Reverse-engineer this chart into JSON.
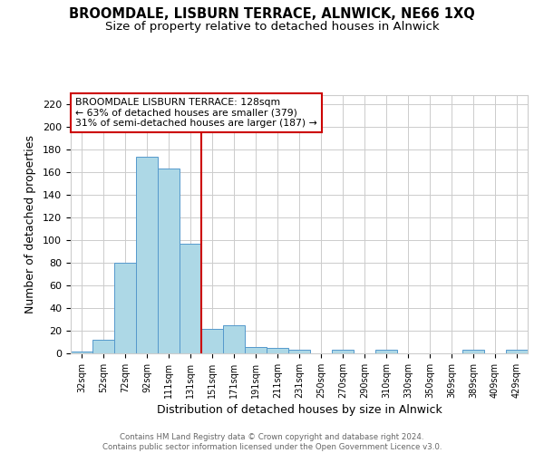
{
  "title": "BROOMDALE, LISBURN TERRACE, ALNWICK, NE66 1XQ",
  "subtitle": "Size of property relative to detached houses in Alnwick",
  "xlabel": "Distribution of detached houses by size in Alnwick",
  "ylabel": "Number of detached properties",
  "bar_labels": [
    "32sqm",
    "52sqm",
    "72sqm",
    "92sqm",
    "111sqm",
    "131sqm",
    "151sqm",
    "171sqm",
    "191sqm",
    "211sqm",
    "231sqm",
    "250sqm",
    "270sqm",
    "290sqm",
    "310sqm",
    "330sqm",
    "350sqm",
    "369sqm",
    "389sqm",
    "409sqm",
    "429sqm"
  ],
  "bar_values": [
    2,
    12,
    80,
    174,
    163,
    97,
    22,
    25,
    6,
    5,
    3,
    0,
    3,
    0,
    3,
    0,
    0,
    0,
    3,
    0,
    3
  ],
  "bar_color": "#add8e6",
  "bar_edgecolor": "#5599cc",
  "grid_color": "#cccccc",
  "ylim": [
    0,
    228
  ],
  "yticks": [
    0,
    20,
    40,
    60,
    80,
    100,
    120,
    140,
    160,
    180,
    200,
    220
  ],
  "vline_x": 5.5,
  "vline_color": "#cc0000",
  "annotation_title": "BROOMDALE LISBURN TERRACE: 128sqm",
  "annotation_line1": "← 63% of detached houses are smaller (379)",
  "annotation_line2": "31% of semi-detached houses are larger (187) →",
  "footer_line1": "Contains HM Land Registry data © Crown copyright and database right 2024.",
  "footer_line2": "Contains public sector information licensed under the Open Government Licence v3.0.",
  "background_color": "#ffffff",
  "title_fontsize": 10.5,
  "subtitle_fontsize": 9.5
}
